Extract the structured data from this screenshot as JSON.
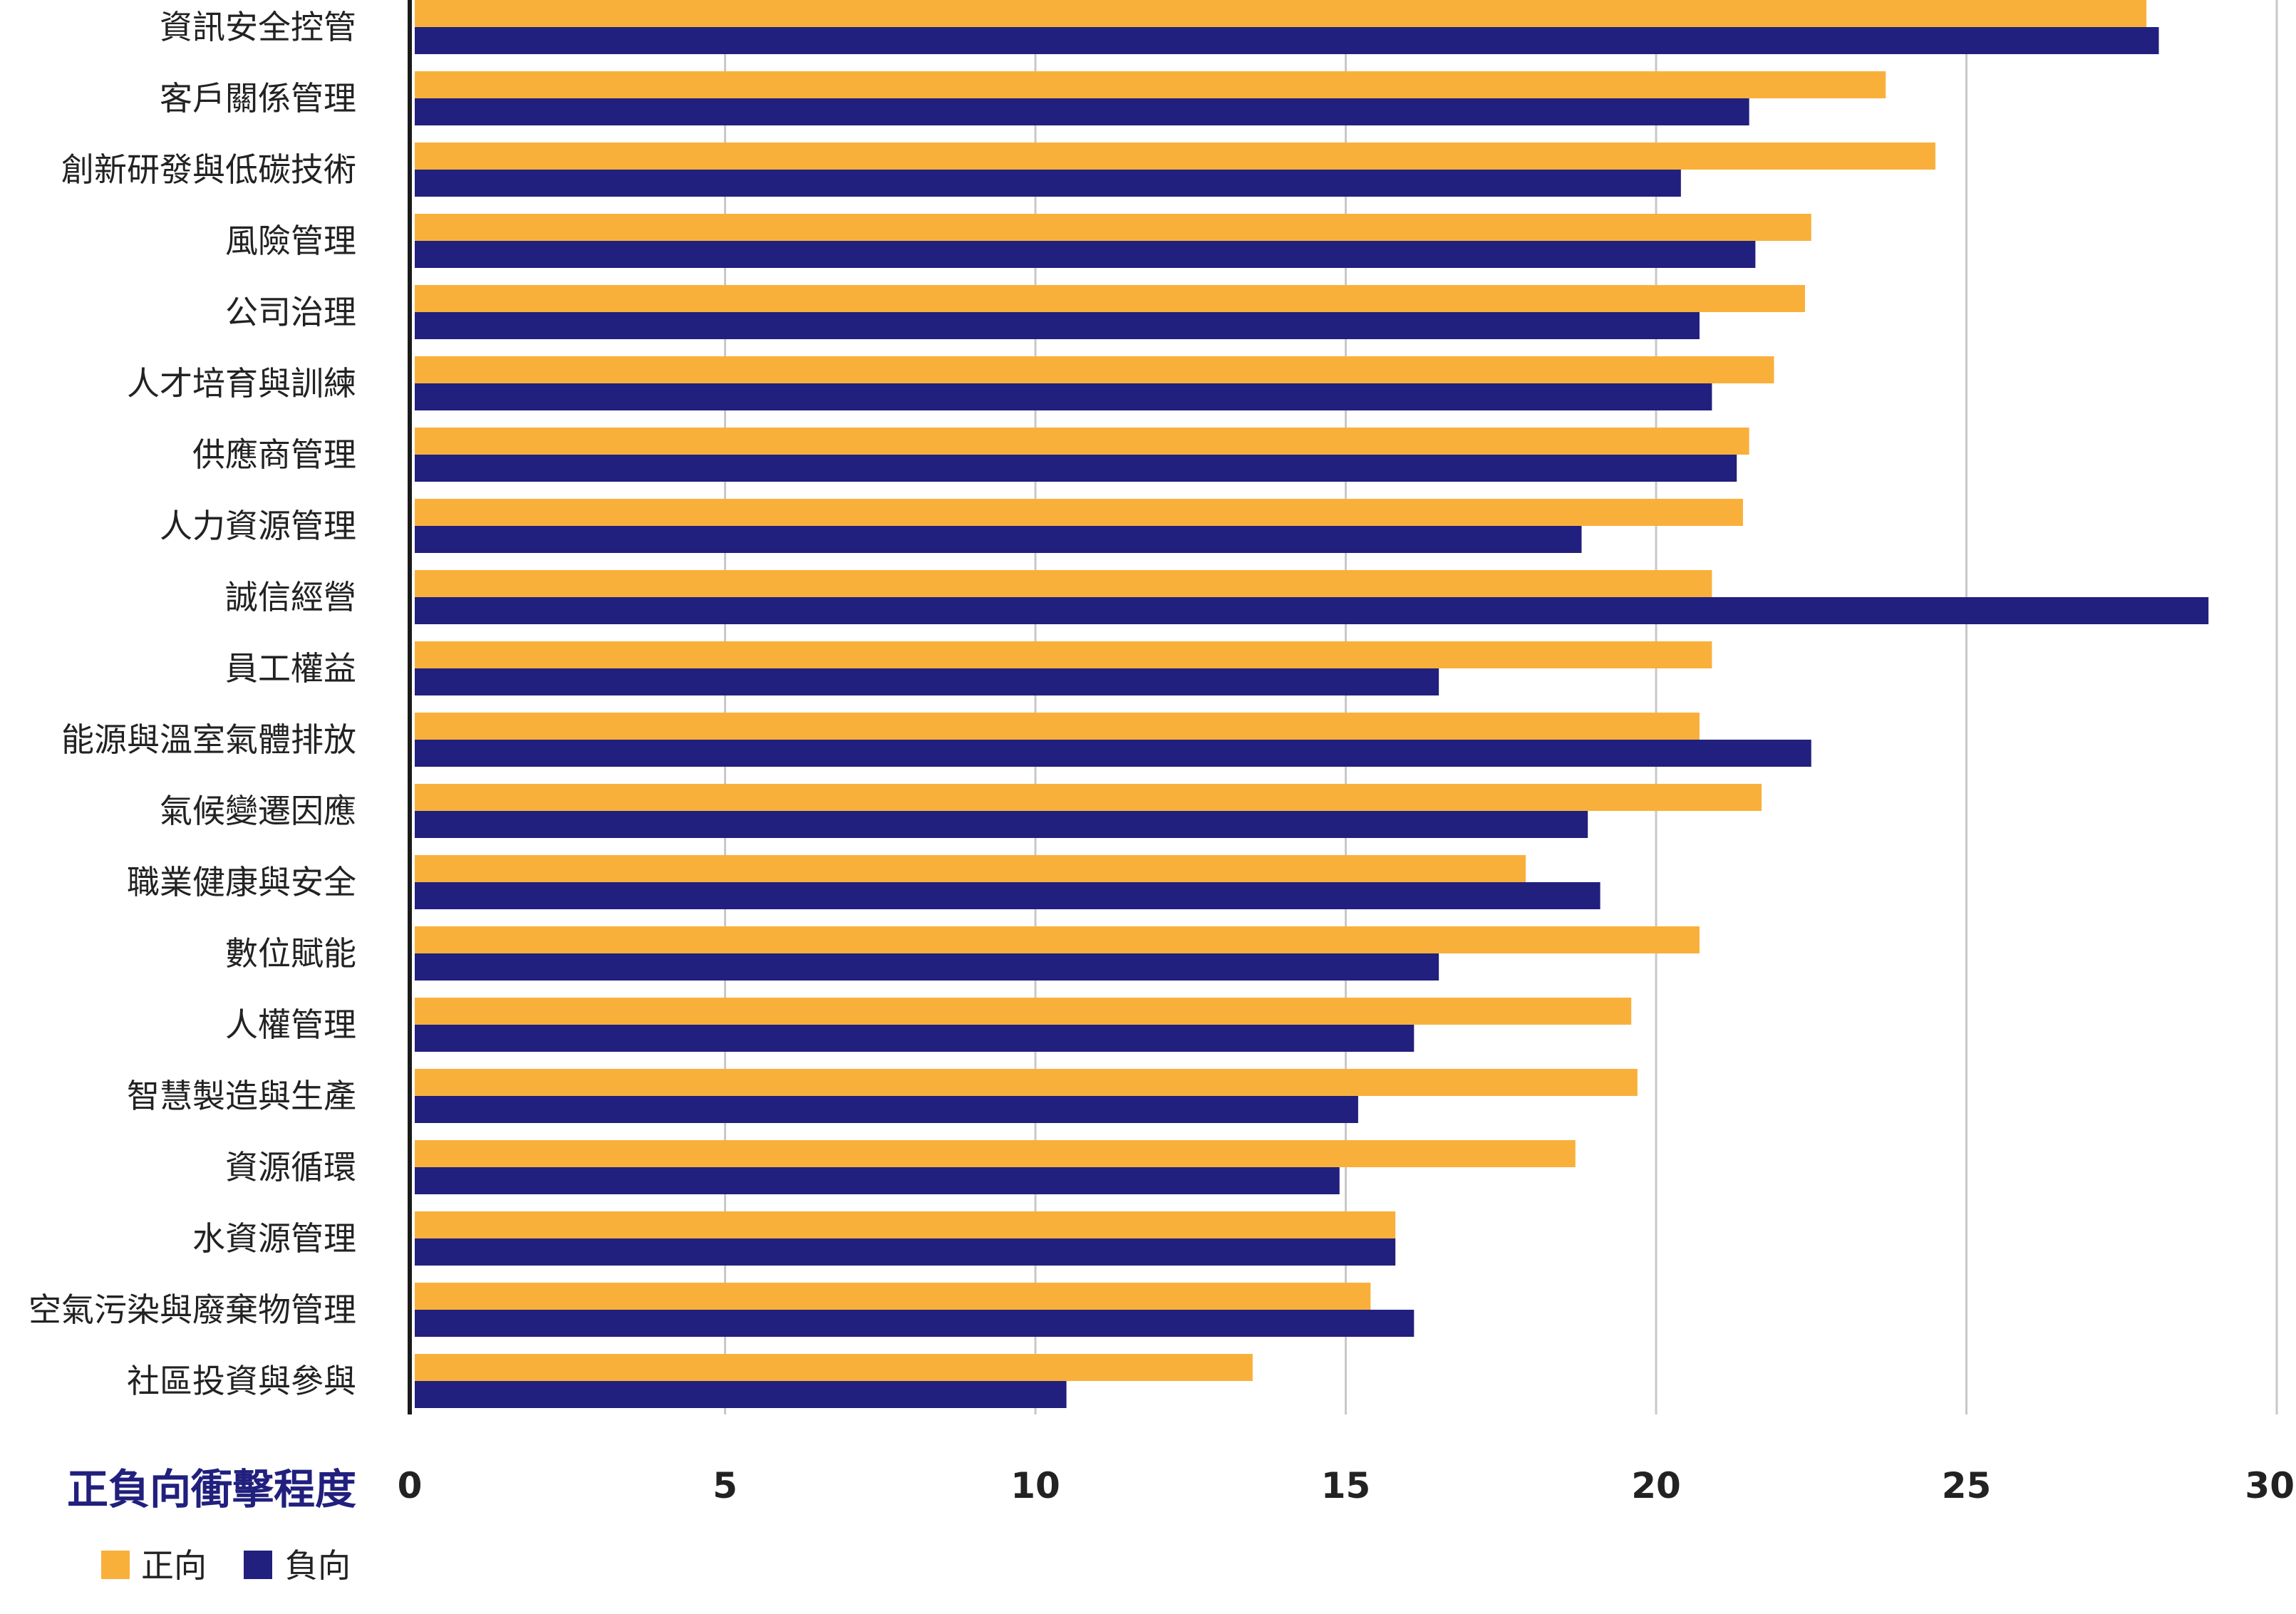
{
  "chart_data": {
    "type": "bar",
    "orientation": "horizontal",
    "title": "",
    "xlabel": "正負向衝擊程度",
    "ylabel": "",
    "xlim": [
      0,
      30
    ],
    "xticks": [
      0,
      5,
      10,
      15,
      20,
      25,
      30
    ],
    "grid": true,
    "legend_position": "bottom-left",
    "categories": [
      "資訊安全控管",
      "客戶關係管理",
      "創新研發與低碳技術",
      "風險管理",
      "公司治理",
      "人才培育與訓練",
      "供應商管理",
      "人力資源管理",
      "誠信經營",
      "員工權益",
      "能源與溫室氣體排放",
      "氣候變遷因應",
      "職業健康與安全",
      "數位賦能",
      "人權管理",
      "智慧製造與生產",
      "資源循環",
      "水資源管理",
      "空氣污染與廢棄物管理",
      "社區投資與參與"
    ],
    "series": [
      {
        "name": "正向",
        "color": "#F9B03A",
        "values": [
          27.9,
          23.7,
          24.5,
          22.5,
          22.4,
          21.9,
          21.5,
          21.4,
          20.9,
          20.9,
          20.7,
          21.7,
          17.9,
          20.7,
          19.6,
          19.7,
          18.7,
          15.8,
          15.4,
          13.5
        ]
      },
      {
        "name": "負向",
        "color": "#21207E",
        "values": [
          28.1,
          21.5,
          20.4,
          21.6,
          20.7,
          20.9,
          21.3,
          18.8,
          28.9,
          16.5,
          22.5,
          18.9,
          19.1,
          16.5,
          16.1,
          15.2,
          14.9,
          15.8,
          16.1,
          10.5
        ]
      }
    ]
  },
  "colors": {
    "axis_title": "#21207E",
    "grid": "#C8C8C8",
    "axis": "#1A1A1A"
  }
}
